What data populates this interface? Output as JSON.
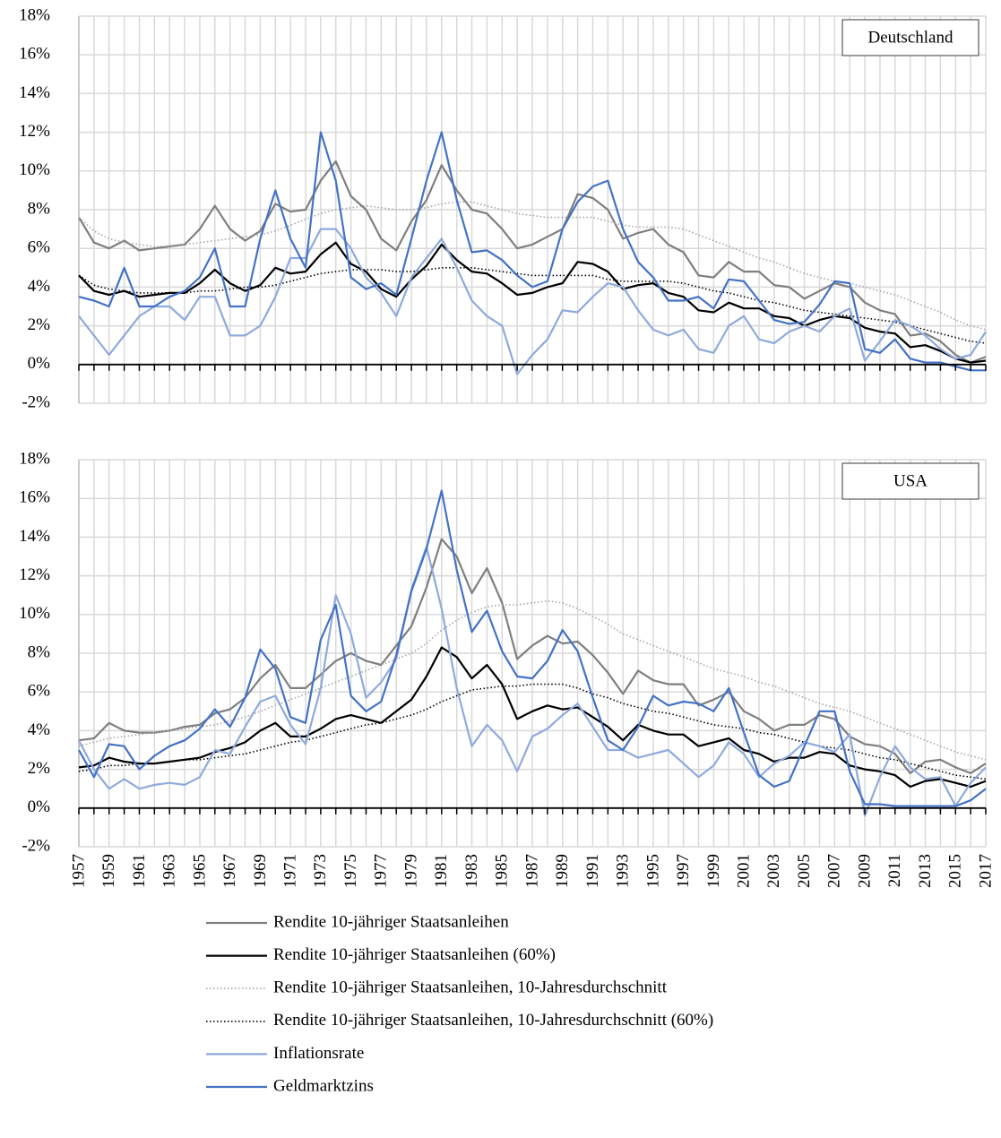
{
  "chart_data": [
    {
      "type": "line",
      "title": "Deutschland",
      "x": [
        1957,
        1958,
        1959,
        1960,
        1961,
        1962,
        1963,
        1964,
        1965,
        1966,
        1967,
        1968,
        1969,
        1970,
        1971,
        1972,
        1973,
        1974,
        1975,
        1976,
        1977,
        1978,
        1979,
        1980,
        1981,
        1982,
        1983,
        1984,
        1985,
        1986,
        1987,
        1988,
        1989,
        1990,
        1991,
        1992,
        1993,
        1994,
        1995,
        1996,
        1997,
        1998,
        1999,
        2000,
        2001,
        2002,
        2003,
        2004,
        2005,
        2006,
        2007,
        2008,
        2009,
        2010,
        2011,
        2012,
        2013,
        2014,
        2015,
        2016,
        2017
      ],
      "xlim": [
        1957,
        2017
      ],
      "xticks": [
        1957,
        1959,
        1961,
        1963,
        1965,
        1967,
        1969,
        1971,
        1973,
        1975,
        1977,
        1979,
        1981,
        1983,
        1985,
        1987,
        1989,
        1991,
        1993,
        1995,
        1997,
        1999,
        2001,
        2003,
        2005,
        2007,
        2009,
        2011,
        2013,
        2015,
        2017
      ],
      "xtick_labels": false,
      "ylim": [
        -2,
        18
      ],
      "yticks": [
        {
          "value": -2,
          "label": "-2%"
        },
        {
          "value": 0,
          "label": "0%"
        },
        {
          "value": 2,
          "label": "2%"
        },
        {
          "value": 4,
          "label": "4%"
        },
        {
          "value": 6,
          "label": "6%"
        },
        {
          "value": 8,
          "label": "8%"
        },
        {
          "value": 10,
          "label": "10%"
        },
        {
          "value": 12,
          "label": "12%"
        },
        {
          "value": 14,
          "label": "14%"
        },
        {
          "value": 16,
          "label": "16%"
        },
        {
          "value": 18,
          "label": "18%"
        }
      ],
      "grid": true,
      "series": [
        {
          "name": "Rendite 10-jähriger Staatsanleihen",
          "color": "#7f7f7f",
          "dotted": false,
          "values": [
            7.6,
            6.3,
            6.0,
            6.4,
            5.9,
            6.0,
            6.1,
            6.2,
            7.0,
            8.2,
            7.0,
            6.4,
            6.9,
            8.3,
            7.9,
            8.0,
            9.5,
            10.5,
            8.7,
            8.0,
            6.5,
            5.9,
            7.4,
            8.5,
            10.3,
            9.0,
            8.0,
            7.8,
            7.0,
            6.0,
            6.2,
            6.6,
            7.0,
            8.8,
            8.6,
            8.0,
            6.5,
            6.8,
            7.0,
            6.2,
            5.8,
            4.6,
            4.5,
            5.3,
            4.8,
            4.8,
            4.1,
            4.0,
            3.4,
            3.8,
            4.2,
            4.0,
            3.2,
            2.8,
            2.6,
            1.5,
            1.6,
            1.2,
            0.5,
            0.1,
            0.4
          ]
        },
        {
          "name": "Rendite 10-jähriger Staatsanleihen (60%)",
          "color": "#000000",
          "dotted": false,
          "values": [
            4.6,
            3.8,
            3.6,
            3.8,
            3.5,
            3.6,
            3.7,
            3.7,
            4.2,
            4.9,
            4.2,
            3.8,
            4.1,
            5.0,
            4.7,
            4.8,
            5.7,
            6.3,
            5.2,
            4.8,
            3.9,
            3.5,
            4.4,
            5.1,
            6.2,
            5.4,
            4.8,
            4.7,
            4.2,
            3.6,
            3.7,
            4.0,
            4.2,
            5.3,
            5.2,
            4.8,
            3.9,
            4.1,
            4.2,
            3.7,
            3.5,
            2.8,
            2.7,
            3.2,
            2.9,
            2.9,
            2.5,
            2.4,
            2.0,
            2.3,
            2.5,
            2.4,
            1.9,
            1.7,
            1.6,
            0.9,
            1.0,
            0.7,
            0.3,
            0.1,
            0.2
          ]
        },
        {
          "name": "Rendite 10-jähriger Staatsanleihen, 10-Jahresdurchschnitt",
          "color": "#a6a6a6",
          "dotted": true,
          "values": [
            7.6,
            6.9,
            6.5,
            6.3,
            6.2,
            6.1,
            6.1,
            6.2,
            6.3,
            6.4,
            6.5,
            6.6,
            6.7,
            6.9,
            7.2,
            7.5,
            7.8,
            8.0,
            8.1,
            8.2,
            8.1,
            8.0,
            8.0,
            8.1,
            8.3,
            8.4,
            8.4,
            8.2,
            8.0,
            7.8,
            7.7,
            7.6,
            7.6,
            7.6,
            7.6,
            7.4,
            7.2,
            7.1,
            7.1,
            7.1,
            7.0,
            6.7,
            6.4,
            6.1,
            5.8,
            5.5,
            5.3,
            5.0,
            4.7,
            4.5,
            4.3,
            4.2,
            4.0,
            3.8,
            3.6,
            3.3,
            3.0,
            2.7,
            2.3,
            2.0,
            1.8
          ]
        },
        {
          "name": "Rendite 10-jähriger Staatsanleihen, 10-Jahresdurchschnitt (60%)",
          "color": "#000000",
          "dotted": true,
          "values": [
            4.6,
            4.1,
            3.9,
            3.8,
            3.7,
            3.7,
            3.7,
            3.7,
            3.8,
            3.8,
            3.9,
            4.0,
            4.0,
            4.1,
            4.3,
            4.5,
            4.7,
            4.8,
            4.9,
            4.9,
            4.9,
            4.8,
            4.8,
            4.9,
            5.0,
            5.0,
            5.0,
            4.9,
            4.8,
            4.7,
            4.6,
            4.6,
            4.6,
            4.6,
            4.6,
            4.4,
            4.3,
            4.3,
            4.3,
            4.3,
            4.2,
            4.0,
            3.8,
            3.7,
            3.5,
            3.3,
            3.2,
            3.0,
            2.8,
            2.7,
            2.6,
            2.5,
            2.4,
            2.3,
            2.2,
            2.0,
            1.8,
            1.6,
            1.4,
            1.2,
            1.1
          ]
        },
        {
          "name": "Inflationsrate",
          "color": "#8faadc",
          "dotted": false,
          "values": [
            2.5,
            1.5,
            0.5,
            1.5,
            2.5,
            3.0,
            3.0,
            2.3,
            3.5,
            3.5,
            1.5,
            1.5,
            2.0,
            3.5,
            5.5,
            5.5,
            7.0,
            7.0,
            6.0,
            4.5,
            3.7,
            2.5,
            4.5,
            5.5,
            6.5,
            5.0,
            3.3,
            2.5,
            2.0,
            -0.5,
            0.5,
            1.3,
            2.8,
            2.7,
            3.5,
            4.2,
            4.0,
            2.8,
            1.8,
            1.5,
            1.8,
            0.8,
            0.6,
            2.0,
            2.5,
            1.3,
            1.1,
            1.7,
            2.0,
            1.7,
            2.5,
            2.9,
            0.2,
            1.2,
            2.3,
            2.0,
            1.5,
            0.8,
            0.3,
            0.5,
            1.7
          ]
        },
        {
          "name": "Geldmarktzins",
          "color": "#4472c4",
          "dotted": false,
          "values": [
            3.5,
            3.3,
            3.0,
            5.0,
            3.0,
            3.0,
            3.5,
            3.8,
            4.5,
            6.0,
            3.0,
            3.0,
            6.5,
            9.0,
            6.5,
            5.0,
            12.0,
            9.5,
            4.5,
            3.9,
            4.2,
            3.6,
            6.5,
            9.5,
            12.0,
            8.5,
            5.8,
            5.9,
            5.4,
            4.6,
            4.0,
            4.3,
            7.0,
            8.4,
            9.2,
            9.5,
            7.0,
            5.3,
            4.5,
            3.3,
            3.3,
            3.5,
            2.9,
            4.4,
            4.3,
            3.3,
            2.3,
            2.1,
            2.2,
            3.1,
            4.3,
            4.2,
            0.8,
            0.6,
            1.3,
            0.3,
            0.1,
            0.1,
            -0.1,
            -0.3,
            -0.3
          ]
        }
      ]
    },
    {
      "type": "line",
      "title": "USA",
      "x": [
        1957,
        1958,
        1959,
        1960,
        1961,
        1962,
        1963,
        1964,
        1965,
        1966,
        1967,
        1968,
        1969,
        1970,
        1971,
        1972,
        1973,
        1974,
        1975,
        1976,
        1977,
        1978,
        1979,
        1980,
        1981,
        1982,
        1983,
        1984,
        1985,
        1986,
        1987,
        1988,
        1989,
        1990,
        1991,
        1992,
        1993,
        1994,
        1995,
        1996,
        1997,
        1998,
        1999,
        2000,
        2001,
        2002,
        2003,
        2004,
        2005,
        2006,
        2007,
        2008,
        2009,
        2010,
        2011,
        2012,
        2013,
        2014,
        2015,
        2016,
        2017
      ],
      "xlim": [
        1957,
        2017
      ],
      "xticks": [
        1957,
        1959,
        1961,
        1963,
        1965,
        1967,
        1969,
        1971,
        1973,
        1975,
        1977,
        1979,
        1981,
        1983,
        1985,
        1987,
        1989,
        1991,
        1993,
        1995,
        1997,
        1999,
        2001,
        2003,
        2005,
        2007,
        2009,
        2011,
        2013,
        2015,
        2017
      ],
      "xtick_labels": true,
      "ylim": [
        -2,
        18
      ],
      "yticks": [
        {
          "value": -2,
          "label": "-2%"
        },
        {
          "value": 0,
          "label": "0%"
        },
        {
          "value": 2,
          "label": "2%"
        },
        {
          "value": 4,
          "label": "4%"
        },
        {
          "value": 6,
          "label": "6%"
        },
        {
          "value": 8,
          "label": "8%"
        },
        {
          "value": 10,
          "label": "10%"
        },
        {
          "value": 12,
          "label": "12%"
        },
        {
          "value": 14,
          "label": "14%"
        },
        {
          "value": 16,
          "label": "16%"
        },
        {
          "value": 18,
          "label": "18%"
        }
      ],
      "grid": true,
      "series": [
        {
          "name": "Rendite 10-jähriger Staatsanleihen",
          "color": "#7f7f7f",
          "dotted": false,
          "values": [
            3.5,
            3.6,
            4.4,
            4.0,
            3.9,
            3.9,
            4.0,
            4.2,
            4.3,
            4.9,
            5.1,
            5.7,
            6.7,
            7.4,
            6.2,
            6.2,
            6.9,
            7.6,
            8.0,
            7.6,
            7.4,
            8.4,
            9.4,
            11.4,
            13.9,
            13.0,
            11.1,
            12.4,
            10.6,
            7.7,
            8.4,
            8.9,
            8.5,
            8.6,
            7.9,
            7.0,
            5.9,
            7.1,
            6.6,
            6.4,
            6.4,
            5.3,
            5.6,
            6.0,
            5.0,
            4.6,
            4.0,
            4.3,
            4.3,
            4.8,
            4.6,
            3.7,
            3.3,
            3.2,
            2.8,
            1.8,
            2.4,
            2.5,
            2.1,
            1.8,
            2.3
          ]
        },
        {
          "name": "Rendite 10-jähriger Staatsanleihen (60%)",
          "color": "#000000",
          "dotted": false,
          "values": [
            2.1,
            2.2,
            2.6,
            2.4,
            2.3,
            2.3,
            2.4,
            2.5,
            2.6,
            2.9,
            3.1,
            3.4,
            4.0,
            4.4,
            3.7,
            3.7,
            4.1,
            4.6,
            4.8,
            4.6,
            4.4,
            5.0,
            5.6,
            6.8,
            8.3,
            7.8,
            6.7,
            7.4,
            6.4,
            4.6,
            5.0,
            5.3,
            5.1,
            5.2,
            4.7,
            4.2,
            3.5,
            4.3,
            4.0,
            3.8,
            3.8,
            3.2,
            3.4,
            3.6,
            3.0,
            2.8,
            2.4,
            2.6,
            2.6,
            2.9,
            2.8,
            2.2,
            2.0,
            1.9,
            1.7,
            1.1,
            1.4,
            1.5,
            1.3,
            1.1,
            1.4
          ]
        },
        {
          "name": "Rendite 10-jähriger Staatsanleihen, 10-Jahresdurchschnitt",
          "color": "#a6a6a6",
          "dotted": true,
          "values": [
            3.2,
            3.4,
            3.6,
            3.7,
            3.8,
            3.9,
            4.0,
            4.1,
            4.2,
            4.3,
            4.5,
            4.7,
            5.0,
            5.3,
            5.6,
            5.9,
            6.2,
            6.5,
            6.8,
            7.1,
            7.4,
            7.7,
            8.0,
            8.5,
            9.2,
            9.7,
            10.1,
            10.4,
            10.5,
            10.5,
            10.6,
            10.7,
            10.6,
            10.3,
            9.9,
            9.5,
            9.0,
            8.7,
            8.4,
            8.1,
            7.8,
            7.5,
            7.2,
            7.0,
            6.8,
            6.5,
            6.3,
            6.0,
            5.7,
            5.4,
            5.2,
            5.0,
            4.7,
            4.4,
            4.1,
            3.8,
            3.5,
            3.2,
            2.9,
            2.7,
            2.5
          ]
        },
        {
          "name": "Rendite 10-jähriger Staatsanleihen, 10-Jahresdurchschnitt (60%)",
          "color": "#000000",
          "dotted": true,
          "values": [
            1.9,
            2.0,
            2.2,
            2.2,
            2.3,
            2.3,
            2.4,
            2.5,
            2.5,
            2.6,
            2.7,
            2.8,
            3.0,
            3.2,
            3.4,
            3.5,
            3.7,
            3.9,
            4.1,
            4.3,
            4.4,
            4.6,
            4.8,
            5.1,
            5.5,
            5.8,
            6.1,
            6.2,
            6.3,
            6.3,
            6.4,
            6.4,
            6.4,
            6.2,
            5.9,
            5.7,
            5.4,
            5.2,
            5.0,
            4.9,
            4.7,
            4.5,
            4.3,
            4.2,
            4.1,
            3.9,
            3.8,
            3.6,
            3.4,
            3.2,
            3.1,
            3.0,
            2.8,
            2.6,
            2.5,
            2.3,
            2.1,
            1.9,
            1.7,
            1.6,
            1.5
          ]
        },
        {
          "name": "Inflationsrate",
          "color": "#8faadc",
          "dotted": false,
          "values": [
            3.5,
            2.0,
            1.0,
            1.5,
            1.0,
            1.2,
            1.3,
            1.2,
            1.6,
            3.0,
            2.8,
            4.2,
            5.5,
            5.8,
            4.3,
            3.3,
            6.2,
            11.0,
            9.0,
            5.7,
            6.5,
            7.7,
            11.3,
            13.5,
            10.3,
            6.2,
            3.2,
            4.3,
            3.5,
            1.9,
            3.7,
            4.1,
            4.8,
            5.4,
            4.2,
            3.0,
            3.0,
            2.6,
            2.8,
            3.0,
            2.3,
            1.6,
            2.2,
            3.4,
            2.8,
            1.6,
            2.3,
            2.7,
            3.4,
            3.2,
            2.9,
            3.8,
            -0.4,
            1.6,
            3.2,
            2.1,
            1.5,
            1.6,
            0.1,
            1.3,
            2.1
          ]
        },
        {
          "name": "Geldmarktzins",
          "color": "#4472c4",
          "dotted": false,
          "values": [
            3.0,
            1.6,
            3.3,
            3.2,
            2.0,
            2.7,
            3.2,
            3.5,
            4.1,
            5.1,
            4.2,
            5.7,
            8.2,
            7.2,
            4.7,
            4.4,
            8.7,
            10.5,
            5.8,
            5.0,
            5.5,
            7.9,
            11.2,
            13.4,
            16.4,
            12.3,
            9.1,
            10.2,
            8.1,
            6.8,
            6.7,
            7.6,
            9.2,
            8.1,
            5.7,
            3.5,
            3.0,
            4.2,
            5.8,
            5.3,
            5.5,
            5.4,
            5.0,
            6.2,
            3.9,
            1.7,
            1.1,
            1.4,
            3.2,
            5.0,
            5.0,
            1.9,
            0.2,
            0.2,
            0.1,
            0.1,
            0.1,
            0.1,
            0.1,
            0.4,
            1.0
          ]
        }
      ]
    }
  ]
}
